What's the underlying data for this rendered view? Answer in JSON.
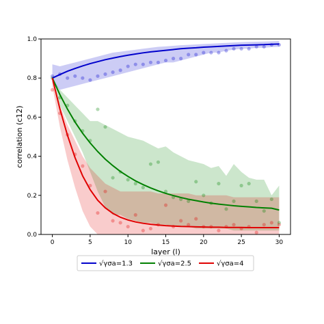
{
  "chart_data": {
    "type": "line",
    "xlabel": "layer (l)",
    "ylabel": "correlation (c12)",
    "xlim": [
      -1.5,
      31.5
    ],
    "ylim": [
      0.0,
      1.0
    ],
    "xticks": [
      "0",
      "5",
      "10",
      "15",
      "20",
      "25",
      "30"
    ],
    "yticks": [
      "0.0",
      "0.2",
      "0.4",
      "0.6",
      "0.8",
      "1.0"
    ],
    "grid": false,
    "legend_position": "bottom-center",
    "series": [
      {
        "name": "√γσa=1.3",
        "color": "#0000cc",
        "x": [
          0,
          1,
          2,
          3,
          4,
          5,
          6,
          7,
          8,
          9,
          10,
          11,
          12,
          13,
          14,
          15,
          16,
          17,
          18,
          19,
          20,
          21,
          22,
          23,
          24,
          25,
          26,
          27,
          28,
          29,
          30
        ],
        "curve": [
          0.8,
          0.818,
          0.835,
          0.849,
          0.862,
          0.874,
          0.884,
          0.894,
          0.902,
          0.91,
          0.917,
          0.923,
          0.929,
          0.934,
          0.938,
          0.942,
          0.946,
          0.95,
          0.953,
          0.955,
          0.958,
          0.96,
          0.962,
          0.964,
          0.966,
          0.968,
          0.969,
          0.97,
          0.971,
          0.973,
          0.974
        ],
        "band_upper": [
          0.87,
          0.86,
          0.87,
          0.88,
          0.89,
          0.9,
          0.91,
          0.92,
          0.93,
          0.935,
          0.94,
          0.945,
          0.95,
          0.955,
          0.96,
          0.962,
          0.965,
          0.968,
          0.97,
          0.972,
          0.974,
          0.976,
          0.978,
          0.98,
          0.982,
          0.984,
          0.985,
          0.986,
          0.987,
          0.988,
          0.99
        ],
        "band_lower": [
          0.78,
          0.74,
          0.75,
          0.76,
          0.77,
          0.78,
          0.79,
          0.8,
          0.81,
          0.82,
          0.83,
          0.84,
          0.85,
          0.86,
          0.87,
          0.88,
          0.88,
          0.89,
          0.9,
          0.91,
          0.92,
          0.93,
          0.93,
          0.94,
          0.945,
          0.95,
          0.95,
          0.955,
          0.955,
          0.958,
          0.96
        ],
        "points": [
          0.81,
          0.82,
          0.8,
          0.81,
          0.8,
          0.79,
          0.81,
          0.82,
          0.83,
          0.84,
          0.86,
          0.87,
          0.87,
          0.88,
          0.88,
          0.89,
          0.9,
          0.9,
          0.92,
          0.92,
          0.93,
          0.93,
          0.93,
          0.94,
          0.95,
          0.95,
          0.95,
          0.96,
          0.96,
          0.97,
          0.97
        ]
      },
      {
        "name": "√γσa=2.5",
        "color": "#008000",
        "x": [
          0,
          1,
          2,
          3,
          4,
          5,
          6,
          7,
          8,
          9,
          10,
          11,
          12,
          13,
          14,
          15,
          16,
          17,
          18,
          19,
          20,
          21,
          22,
          23,
          24,
          25,
          26,
          27,
          28,
          29,
          30
        ],
        "curve": [
          0.8,
          0.715,
          0.641,
          0.575,
          0.518,
          0.468,
          0.424,
          0.385,
          0.352,
          0.322,
          0.297,
          0.274,
          0.255,
          0.238,
          0.223,
          0.21,
          0.199,
          0.189,
          0.18,
          0.173,
          0.166,
          0.16,
          0.155,
          0.151,
          0.147,
          0.144,
          0.141,
          0.138,
          0.136,
          0.134,
          0.125
        ],
        "band_upper": [
          0.8,
          0.74,
          0.7,
          0.66,
          0.62,
          0.58,
          0.58,
          0.56,
          0.54,
          0.52,
          0.5,
          0.49,
          0.48,
          0.46,
          0.44,
          0.45,
          0.42,
          0.4,
          0.38,
          0.37,
          0.36,
          0.34,
          0.35,
          0.3,
          0.36,
          0.32,
          0.29,
          0.28,
          0.28,
          0.2,
          0.25
        ],
        "band_lower": [
          0.78,
          0.66,
          0.58,
          0.5,
          0.42,
          0.32,
          0.22,
          0.14,
          0.1,
          0.1,
          0.08,
          0.07,
          0.06,
          0.06,
          0.05,
          0.05,
          0.04,
          0.04,
          0.04,
          0.03,
          0.03,
          0.03,
          0.03,
          0.03,
          0.02,
          0.02,
          0.02,
          0.02,
          0.02,
          0.02,
          0.02
        ],
        "points": [
          0.8,
          0.7,
          0.66,
          0.58,
          0.53,
          0.48,
          0.64,
          0.55,
          0.29,
          0.32,
          0.28,
          0.26,
          0.24,
          0.36,
          0.37,
          0.22,
          0.19,
          0.18,
          0.17,
          0.27,
          0.2,
          0.16,
          0.26,
          0.13,
          0.17,
          0.25,
          0.26,
          0.17,
          0.12,
          0.18,
          0.06
        ]
      },
      {
        "name": "√γσa=4",
        "color": "#e00000",
        "x": [
          0,
          1,
          2,
          3,
          4,
          5,
          6,
          7,
          8,
          9,
          10,
          11,
          12,
          13,
          14,
          15,
          16,
          17,
          18,
          19,
          20,
          21,
          22,
          23,
          24,
          25,
          26,
          27,
          28,
          29,
          30
        ],
        "curve": [
          0.8,
          0.642,
          0.507,
          0.393,
          0.3,
          0.229,
          0.175,
          0.136,
          0.108,
          0.088,
          0.074,
          0.064,
          0.057,
          0.052,
          0.048,
          0.045,
          0.043,
          0.041,
          0.04,
          0.039,
          0.038,
          0.037,
          0.037,
          0.036,
          0.036,
          0.036,
          0.035,
          0.035,
          0.035,
          0.035,
          0.035
        ],
        "band_upper": [
          0.8,
          0.66,
          0.56,
          0.48,
          0.4,
          0.34,
          0.3,
          0.26,
          0.24,
          0.22,
          0.22,
          0.22,
          0.22,
          0.22,
          0.21,
          0.21,
          0.21,
          0.21,
          0.21,
          0.2,
          0.2,
          0.2,
          0.2,
          0.2,
          0.19,
          0.19,
          0.19,
          0.19,
          0.19,
          0.19,
          0.19
        ],
        "band_lower": [
          0.76,
          0.55,
          0.38,
          0.24,
          0.12,
          0.04,
          0.0,
          0.0,
          0.0,
          0.0,
          0.0,
          0.0,
          0.0,
          0.0,
          0.0,
          0.0,
          0.0,
          0.0,
          0.0,
          0.0,
          0.0,
          0.0,
          0.0,
          0.0,
          0.0,
          0.0,
          0.0,
          0.0,
          0.0,
          0.0,
          0.0
        ],
        "points": [
          0.74,
          0.62,
          0.51,
          0.41,
          0.35,
          0.25,
          0.11,
          0.22,
          0.07,
          0.06,
          0.04,
          0.1,
          0.02,
          0.03,
          0.05,
          0.15,
          0.04,
          0.07,
          0.05,
          0.08,
          0.04,
          0.04,
          0.02,
          0.04,
          0.05,
          0.03,
          0.04,
          0.01,
          0.05,
          0.06,
          0.05
        ]
      }
    ]
  }
}
